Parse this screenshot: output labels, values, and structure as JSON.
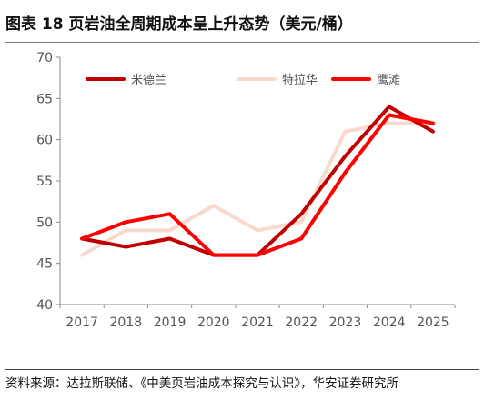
{
  "figure": {
    "title": "图表 18 页岩油全周期成本呈上升态势（美元/桶）",
    "source": "资料来源：达拉斯联储、《中美页岩油成本探究与认识》，华安证券研究所"
  },
  "chart_data": {
    "type": "line",
    "title": "",
    "xlabel": "",
    "ylabel": "",
    "x": [
      "2017",
      "2018",
      "2019",
      "2020",
      "2021",
      "2022",
      "2023",
      "2024",
      "2025"
    ],
    "ylim": [
      40,
      70
    ],
    "yticks": [
      40,
      45,
      50,
      55,
      60,
      65,
      70
    ],
    "grid": false,
    "legend_position": "top",
    "series": [
      {
        "name": "米德兰",
        "color": "#c00000",
        "values": [
          48,
          47,
          48,
          46,
          46,
          51,
          58,
          64,
          61
        ]
      },
      {
        "name": "特拉华",
        "color": "#f8d9cc",
        "values": [
          46,
          49,
          49,
          52,
          49,
          50,
          61,
          62,
          62
        ]
      },
      {
        "name": "鹰滩",
        "color": "#ff0000",
        "values": [
          48,
          50,
          51,
          46,
          46,
          48,
          56,
          63,
          62
        ]
      }
    ]
  }
}
